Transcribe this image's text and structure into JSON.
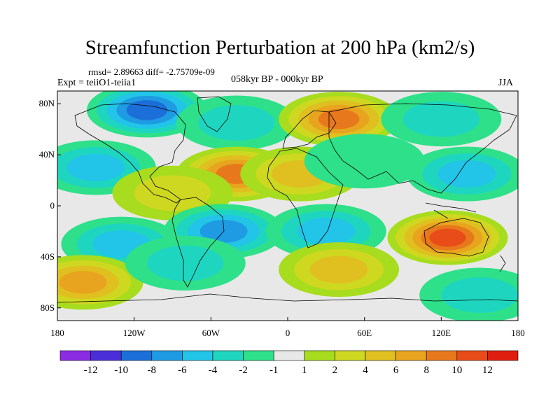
{
  "title": "Streamfunction Perturbation at 200 hPa (km2/s)",
  "stats": "rmsd= 2.89663 diff= -2.75709e-09",
  "left_label": "Expt = teiiO1-teiia1",
  "center_label": "058kyr BP - 000kyr BP",
  "right_label": "JJA",
  "map": {
    "lon_range": [
      -180,
      180
    ],
    "lat_range": [
      -90,
      90
    ],
    "lat_ticks": [
      {
        "value": 80,
        "label": "80N"
      },
      {
        "value": 40,
        "label": "40N"
      },
      {
        "value": 0,
        "label": "0"
      },
      {
        "value": -40,
        "label": "40S"
      },
      {
        "value": -80,
        "label": "80S"
      }
    ],
    "lon_ticks": [
      {
        "value": -180,
        "label": "180"
      },
      {
        "value": -120,
        "label": "120W"
      },
      {
        "value": -60,
        "label": "60W"
      },
      {
        "value": 0,
        "label": "0"
      },
      {
        "value": 60,
        "label": "60E"
      },
      {
        "value": 120,
        "label": "120E"
      },
      {
        "value": 180,
        "label": "180"
      }
    ]
  },
  "colorbar": {
    "colors": [
      "#8b2be2",
      "#4a2fd8",
      "#1c6fd8",
      "#1e9be3",
      "#22c4e8",
      "#1ed6c0",
      "#2ee089",
      "#e8e8e8",
      "#a8dc1e",
      "#cfd820",
      "#e0c020",
      "#e8a41e",
      "#e8781c",
      "#e84c18",
      "#e01e10"
    ],
    "labels": [
      "-12",
      "-10",
      "-8",
      "-6",
      "-4",
      "-2",
      "-1",
      "1",
      "2",
      "4",
      "6",
      "8",
      "10",
      "12"
    ]
  },
  "field": [
    {
      "lon": -110,
      "lat": 75,
      "value": -8
    },
    {
      "lon": -40,
      "lat": 65,
      "value": -3
    },
    {
      "lon": 40,
      "lat": 68,
      "value": 8
    },
    {
      "lon": 120,
      "lat": 68,
      "value": -2
    },
    {
      "lon": -40,
      "lat": 25,
      "value": 8
    },
    {
      "lon": 10,
      "lat": 25,
      "value": 4
    },
    {
      "lon": -150,
      "lat": 30,
      "value": -4
    },
    {
      "lon": 140,
      "lat": 25,
      "value": -5
    },
    {
      "lon": 60,
      "lat": 35,
      "value": -1
    },
    {
      "lon": -90,
      "lat": 10,
      "value": 2
    },
    {
      "lon": -50,
      "lat": -20,
      "value": -6
    },
    {
      "lon": 30,
      "lat": -20,
      "value": -4
    },
    {
      "lon": -130,
      "lat": -30,
      "value": -5
    },
    {
      "lon": 125,
      "lat": -25,
      "value": 10
    },
    {
      "lon": 40,
      "lat": -50,
      "value": 4
    },
    {
      "lon": -160,
      "lat": -60,
      "value": 6
    },
    {
      "lon": 150,
      "lat": -70,
      "value": -2
    },
    {
      "lon": -80,
      "lat": -45,
      "value": -3
    }
  ]
}
